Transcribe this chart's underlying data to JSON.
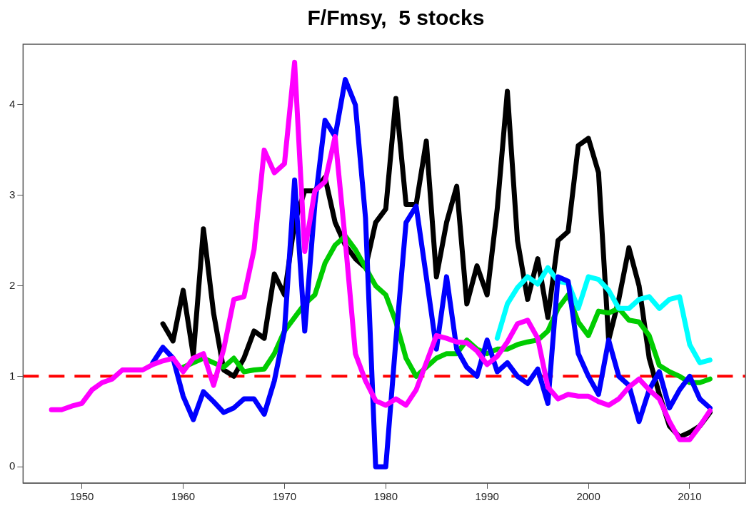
{
  "chart_data": {
    "type": "line",
    "title": "F/Fmsy,  5 stocks",
    "xlim": [
      1944.2,
      2015.5
    ],
    "ylim": [
      -0.18,
      4.67
    ],
    "xticks": [
      1950,
      1960,
      1970,
      1980,
      1990,
      2000,
      2010
    ],
    "yticks": [
      0,
      1,
      2,
      3,
      4
    ],
    "grid": false,
    "legend": false,
    "marker": "none",
    "line_style": "solid",
    "ref_lines": [
      {
        "axis": "y",
        "value": 1,
        "color": "#ff0000",
        "line_style": "dashed"
      }
    ],
    "series": [
      {
        "color": "#000000",
        "x": [
          1958,
          1959,
          1960,
          1961,
          1962,
          1963,
          1964,
          1965,
          1966,
          1967,
          1968,
          1969,
          1970,
          1971,
          1972,
          1973,
          1974,
          1975,
          1976,
          1977,
          1978,
          1979,
          1980,
          1981,
          1982,
          1983,
          1984,
          1985,
          1986,
          1987,
          1988,
          1989,
          1990,
          1991,
          1992,
          1993,
          1994,
          1995,
          1996,
          1997,
          1998,
          1999,
          2000,
          2001,
          2002,
          2003,
          2004,
          2005,
          2006,
          2007,
          2008,
          2009,
          2010,
          2011,
          2012
        ],
        "values": [
          1.58,
          1.39,
          1.95,
          1.23,
          2.63,
          1.7,
          1.07,
          1.0,
          1.2,
          1.5,
          1.42,
          2.13,
          1.9,
          2.7,
          3.05,
          3.05,
          3.2,
          2.7,
          2.45,
          2.3,
          2.2,
          2.7,
          2.85,
          4.07,
          2.9,
          2.9,
          3.6,
          2.1,
          2.7,
          3.1,
          1.8,
          2.22,
          1.9,
          2.85,
          4.15,
          2.5,
          1.85,
          2.3,
          1.65,
          2.5,
          2.6,
          3.55,
          3.63,
          3.25,
          1.4,
          1.85,
          2.42,
          2.0,
          1.2,
          0.8,
          0.45,
          0.33,
          0.38,
          0.45,
          0.6
        ]
      },
      {
        "color": "#00cc00",
        "x": [
          1960,
          1961,
          1962,
          1963,
          1964,
          1965,
          1966,
          1967,
          1968,
          1969,
          1970,
          1971,
          1972,
          1973,
          1974,
          1975,
          1976,
          1977,
          1978,
          1979,
          1980,
          1981,
          1982,
          1983,
          1984,
          1985,
          1986,
          1987,
          1988,
          1989,
          1990,
          1991,
          1992,
          1993,
          1994,
          1995,
          1996,
          1997,
          1998,
          1999,
          2000,
          2001,
          2002,
          2003,
          2004,
          2005,
          2006,
          2007,
          2008,
          2009,
          2010,
          2011,
          2012
        ],
        "values": [
          1.1,
          1.15,
          1.2,
          1.15,
          1.1,
          1.2,
          1.05,
          1.07,
          1.08,
          1.25,
          1.5,
          1.65,
          1.8,
          1.9,
          2.25,
          2.45,
          2.55,
          2.4,
          2.2,
          2.0,
          1.9,
          1.6,
          1.2,
          1.0,
          1.1,
          1.2,
          1.25,
          1.25,
          1.4,
          1.3,
          1.25,
          1.3,
          1.3,
          1.35,
          1.38,
          1.4,
          1.5,
          1.75,
          1.9,
          1.6,
          1.45,
          1.72,
          1.7,
          1.75,
          1.62,
          1.6,
          1.45,
          1.12,
          1.05,
          1.0,
          0.93,
          0.93,
          0.97
        ]
      },
      {
        "color": "#00ffff",
        "x": [
          1991,
          1992,
          1993,
          1994,
          1995,
          1996,
          1997,
          1998,
          1999,
          2000,
          2001,
          2002,
          2003,
          2004,
          2005,
          2006,
          2007,
          2008,
          2009,
          2010,
          2011,
          2012
        ],
        "values": [
          1.42,
          1.8,
          1.98,
          2.1,
          2.02,
          2.2,
          2.05,
          2.03,
          1.75,
          2.1,
          2.07,
          1.95,
          1.75,
          1.75,
          1.85,
          1.88,
          1.75,
          1.85,
          1.88,
          1.35,
          1.15,
          1.18
        ]
      },
      {
        "color": "#0000ff",
        "x": [
          1957,
          1958,
          1959,
          1960,
          1961,
          1962,
          1963,
          1964,
          1965,
          1966,
          1967,
          1968,
          1969,
          1970,
          1971,
          1972,
          1973,
          1974,
          1975,
          1976,
          1977,
          1978,
          1979,
          1980,
          1981,
          1982,
          1983,
          1984,
          1985,
          1986,
          1987,
          1988,
          1989,
          1990,
          1991,
          1992,
          1993,
          1994,
          1995,
          1996,
          1997,
          1998,
          1999,
          2000,
          2001,
          2002,
          2003,
          2004,
          2005,
          2006,
          2007,
          2008,
          2009,
          2010,
          2011,
          2012
        ],
        "values": [
          1.15,
          1.32,
          1.2,
          0.78,
          0.52,
          0.83,
          0.72,
          0.6,
          0.65,
          0.75,
          0.75,
          0.58,
          0.95,
          1.5,
          3.17,
          1.5,
          2.9,
          3.83,
          3.65,
          4.28,
          4.0,
          2.75,
          0.0,
          0.0,
          1.4,
          2.7,
          2.88,
          2.1,
          1.3,
          2.1,
          1.3,
          1.1,
          1.0,
          1.4,
          1.05,
          1.15,
          1.0,
          0.92,
          1.08,
          0.7,
          2.1,
          2.05,
          1.25,
          1.0,
          0.8,
          1.4,
          1.0,
          0.9,
          0.5,
          0.85,
          1.05,
          0.65,
          0.85,
          1.0,
          0.75,
          0.65
        ]
      },
      {
        "color": "#ff00ff",
        "x": [
          1947,
          1948,
          1949,
          1950,
          1951,
          1952,
          1953,
          1954,
          1955,
          1956,
          1957,
          1958,
          1959,
          1960,
          1961,
          1962,
          1963,
          1964,
          1965,
          1966,
          1967,
          1968,
          1969,
          1970,
          1971,
          1972,
          1973,
          1974,
          1975,
          1976,
          1977,
          1978,
          1979,
          1980,
          1981,
          1982,
          1983,
          1984,
          1985,
          1986,
          1987,
          1988,
          1989,
          1990,
          1991,
          1992,
          1993,
          1994,
          1995,
          1996,
          1997,
          1998,
          1999,
          2000,
          2001,
          2002,
          2003,
          2004,
          2005,
          2006,
          2007,
          2008,
          2009,
          2010,
          2011,
          2012
        ],
        "values": [
          0.63,
          0.63,
          0.67,
          0.7,
          0.85,
          0.93,
          0.97,
          1.07,
          1.07,
          1.07,
          1.13,
          1.17,
          1.2,
          1.05,
          1.2,
          1.25,
          0.9,
          1.3,
          1.85,
          1.88,
          2.4,
          3.5,
          3.25,
          3.35,
          4.47,
          2.38,
          3.05,
          3.15,
          3.65,
          2.5,
          1.25,
          0.95,
          0.73,
          0.68,
          0.75,
          0.68,
          0.85,
          1.15,
          1.45,
          1.42,
          1.38,
          1.37,
          1.28,
          1.13,
          1.22,
          1.38,
          1.58,
          1.62,
          1.42,
          0.88,
          0.75,
          0.8,
          0.78,
          0.78,
          0.72,
          0.68,
          0.75,
          0.88,
          0.97,
          0.85,
          0.75,
          0.5,
          0.3,
          0.3,
          0.45,
          0.62
        ]
      }
    ]
  }
}
